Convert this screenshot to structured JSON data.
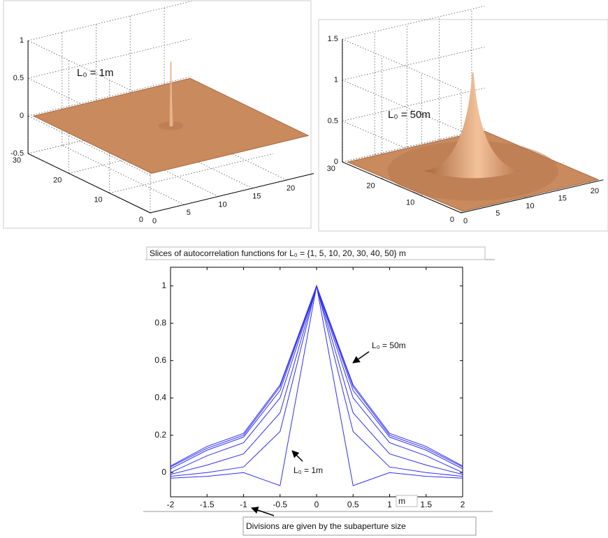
{
  "chart_data": [
    {
      "type": "surface",
      "annotation": "L₀ = 1m",
      "color": "#c98a5e",
      "xlim": [
        0,
        24
      ],
      "ylim": [
        0,
        30
      ],
      "zlim": [
        -0.5,
        1
      ],
      "xticks": [
        0,
        5,
        10,
        15,
        20
      ],
      "yticks": [
        0,
        10,
        20,
        30
      ],
      "zticks": [
        -0.5,
        0,
        0.5,
        1
      ],
      "grid": true
    },
    {
      "type": "surface",
      "annotation": "L₀ = 50m",
      "color": "#c98a5e",
      "xlim": [
        0,
        22
      ],
      "ylim": [
        0,
        30
      ],
      "zlim": [
        0,
        1.5
      ],
      "xticks": [
        0,
        5,
        10,
        15,
        20
      ],
      "yticks": [
        0,
        10,
        20,
        30
      ],
      "zticks": [
        0,
        0.5,
        1,
        1.5
      ],
      "grid": true
    },
    {
      "type": "line",
      "title": "Slices of autocorrelation functions for L₀ = {1, 5, 10, 20, 30, 40, 50} m",
      "xlabel": "m",
      "note": "Divisions are given by the subaperture size",
      "annotations": [
        "L₀ = 50m",
        "L₀ = 1m"
      ],
      "x": [
        -2,
        -1.5,
        -1,
        -0.5,
        0,
        0.5,
        1,
        1.5,
        2
      ],
      "series": [
        {
          "color": "#2f2ff2",
          "values": [
            -0.03,
            -0.02,
            0.0,
            -0.07,
            1,
            -0.07,
            0.0,
            -0.02,
            -0.03
          ]
        },
        {
          "color": "#2f2ff2",
          "values": [
            -0.02,
            0.0,
            0.03,
            0.22,
            1,
            0.22,
            0.03,
            0.0,
            -0.02
          ]
        },
        {
          "color": "#2f2ff2",
          "values": [
            -0.01,
            0.04,
            0.1,
            0.32,
            1,
            0.32,
            0.1,
            0.04,
            -0.01
          ]
        },
        {
          "color": "#2f2ff2",
          "values": [
            0.0,
            0.09,
            0.16,
            0.4,
            1,
            0.4,
            0.16,
            0.09,
            0.0
          ]
        },
        {
          "color": "#2f2ff2",
          "values": [
            0.02,
            0.12,
            0.19,
            0.44,
            1,
            0.44,
            0.19,
            0.12,
            0.02
          ]
        },
        {
          "color": "#2f2ff2",
          "values": [
            0.03,
            0.13,
            0.2,
            0.46,
            1,
            0.46,
            0.2,
            0.13,
            0.03
          ]
        },
        {
          "color": "#2f2ff2",
          "values": [
            0.035,
            0.14,
            0.21,
            0.47,
            1,
            0.47,
            0.21,
            0.14,
            0.035
          ]
        }
      ],
      "xlim": [
        -2,
        2
      ],
      "ylim": [
        -0.13,
        1.1
      ],
      "xticks": [
        -2,
        -1.5,
        -1,
        -0.5,
        0,
        0.5,
        1,
        1.5,
        2
      ],
      "yticks": [
        0,
        0.2,
        0.4,
        0.6,
        0.8,
        1
      ]
    }
  ]
}
